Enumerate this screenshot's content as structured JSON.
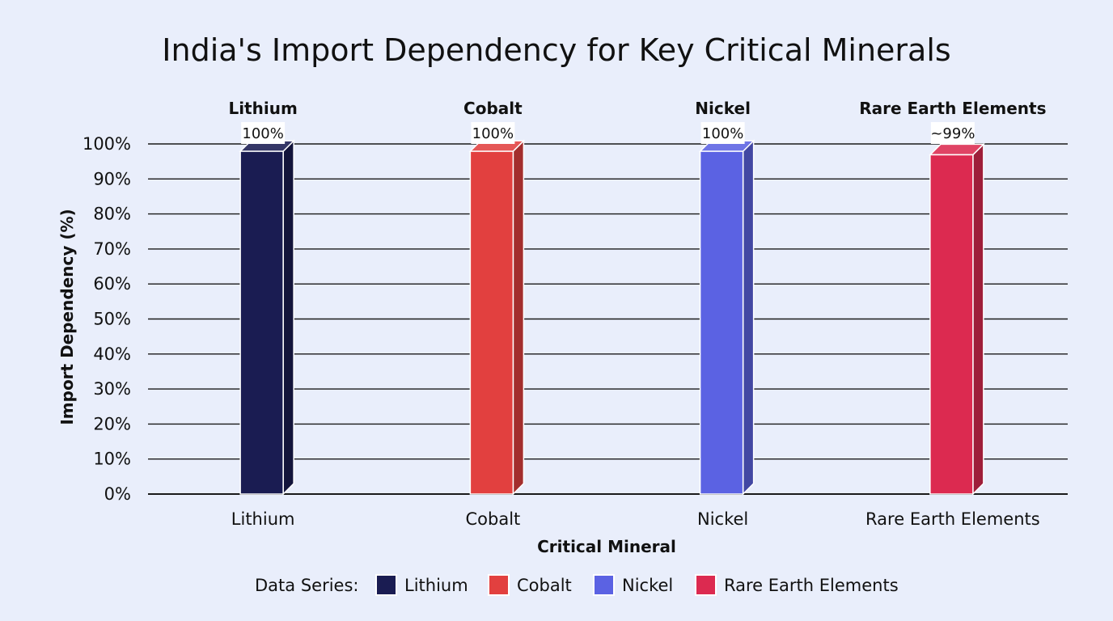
{
  "chart_data": {
    "type": "bar",
    "title": "India's Import Dependency for Key Critical Minerals",
    "xlabel": "Critical Mineral",
    "ylabel": "Import Dependency (%)",
    "ylim": [
      0,
      100
    ],
    "yticks": [
      "0%",
      "10%",
      "20%",
      "30%",
      "40%",
      "50%",
      "60%",
      "70%",
      "80%",
      "90%",
      "100%"
    ],
    "categories": [
      "Lithium",
      "Cobalt",
      "Nickel",
      "Rare Earth Elements"
    ],
    "values": [
      100,
      100,
      100,
      99
    ],
    "data_labels": [
      "100%",
      "100%",
      "100%",
      "~99%"
    ],
    "colors": [
      "#1a1c52",
      "#e2403f",
      "#5b62e3",
      "#dc2a50"
    ],
    "grid": true,
    "legend": {
      "title": "Data Series:",
      "placement": "bottom",
      "entries": [
        "Lithium",
        "Cobalt",
        "Nickel",
        "Rare Earth Elements"
      ]
    }
  }
}
